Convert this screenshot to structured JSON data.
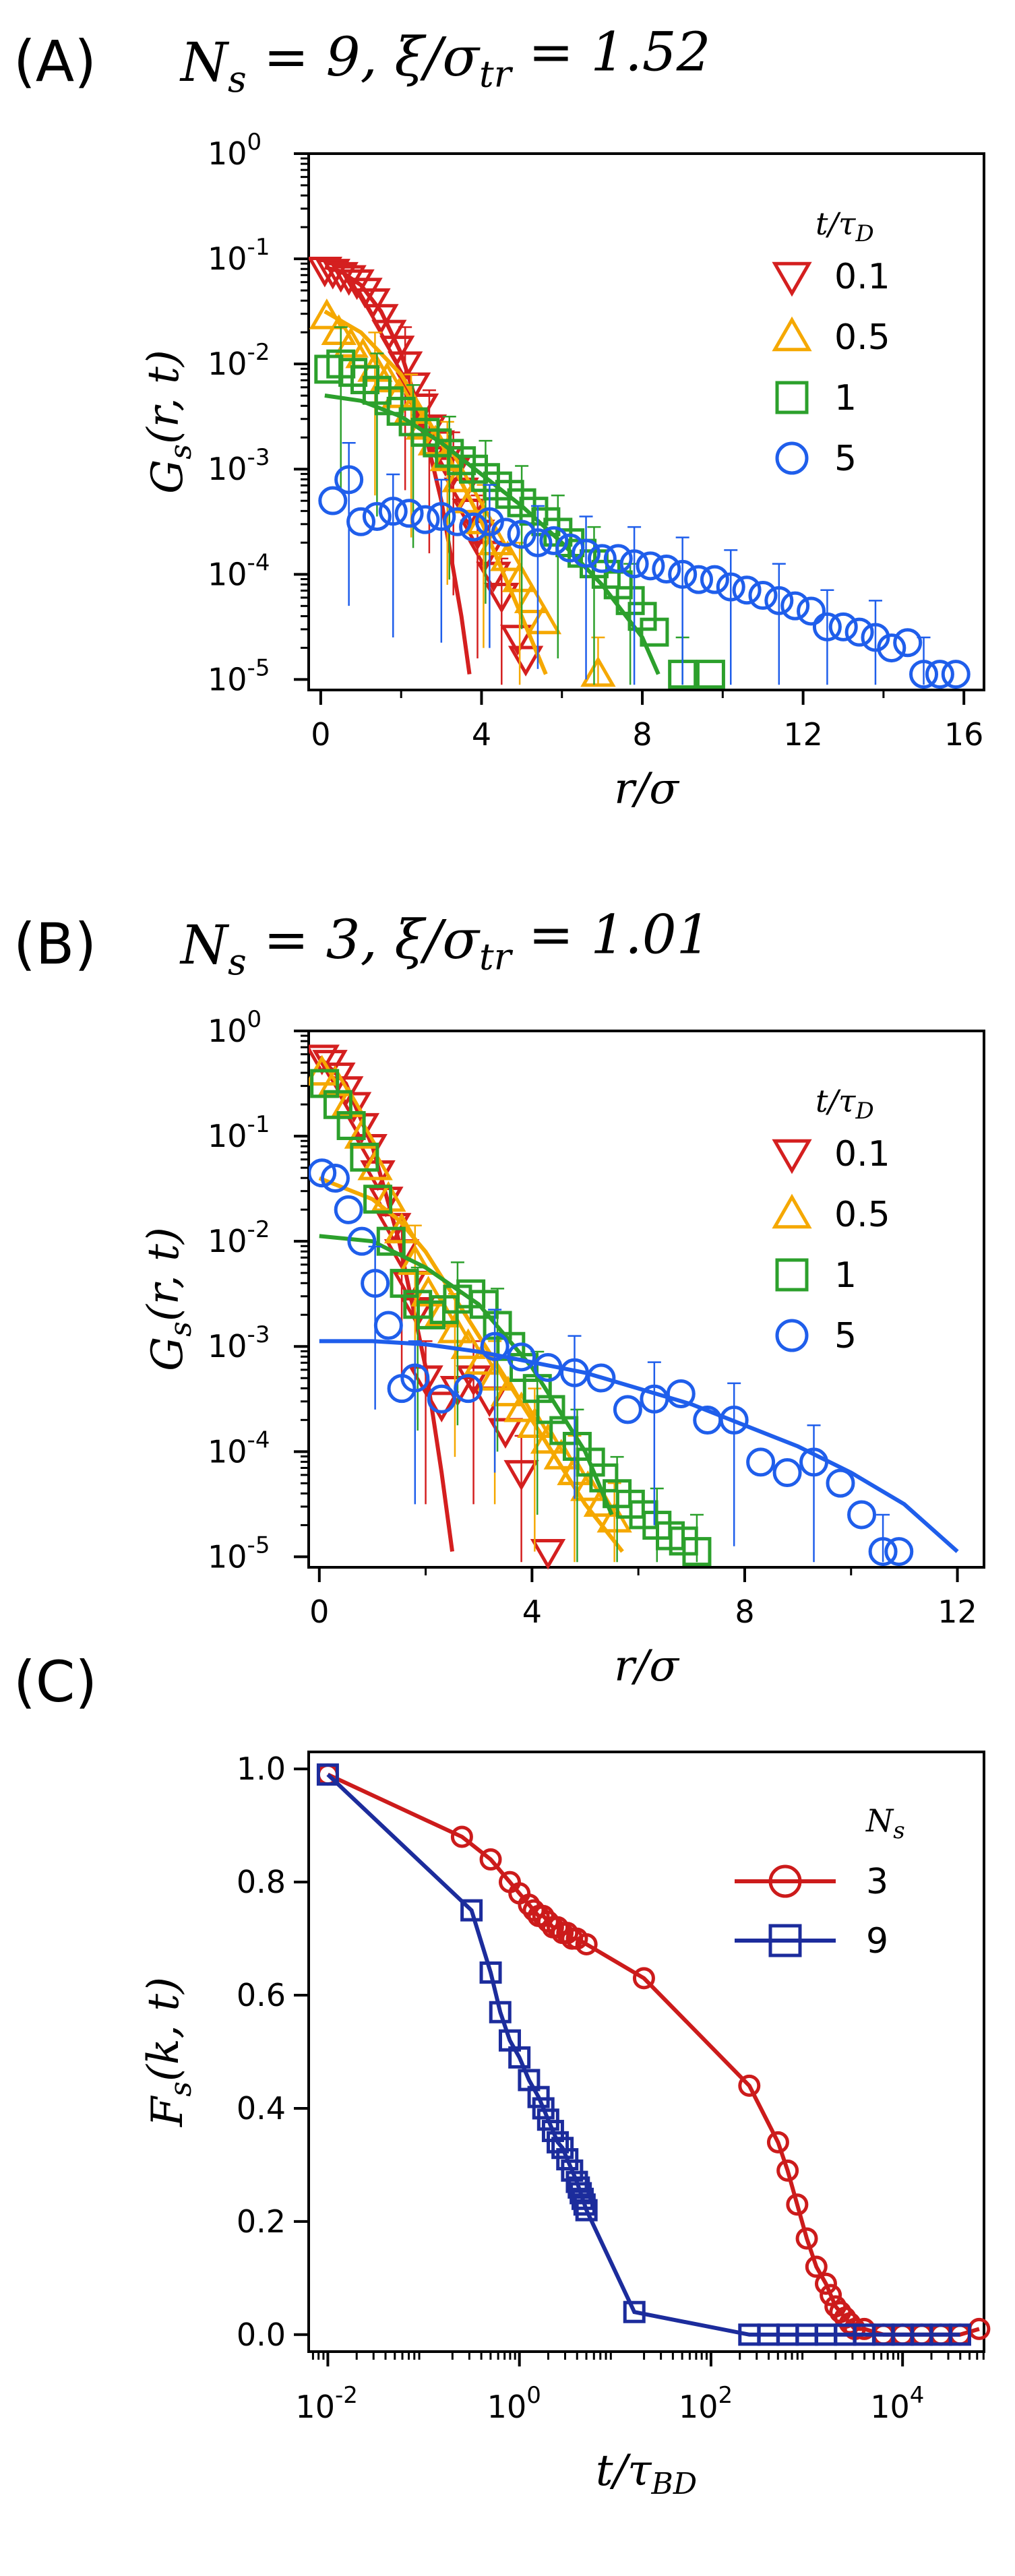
{
  "chart_data": [
    {
      "type": "scatter",
      "panel_label": "(A)",
      "title": "N_s = 9, ξ/σ_tr = 1.52",
      "title_parts": [
        "N",
        "s",
        " = 9, ξ/σ",
        "tr",
        " = 1.52"
      ],
      "xlabel": "r/σ",
      "ylabel": "G_s(r,t)",
      "ylabel_parts": [
        "G",
        "s",
        "(r, t)"
      ],
      "xlim": [
        -0.3,
        16.5
      ],
      "ylim": [
        -5.1,
        0
      ],
      "yscale": "log",
      "x_ticks": [
        0,
        4,
        8,
        12,
        16
      ],
      "y_tick_exponents": [
        0,
        -1,
        -2,
        -3,
        -4,
        -5
      ],
      "legend_title_parts": [
        "t/τ",
        "D"
      ],
      "legend_position": "top-right",
      "series": [
        {
          "name": "0.1",
          "color": "#d41f1f",
          "marker": "tri-down",
          "x": [
            0.1,
            0.3,
            0.5,
            0.7,
            0.9,
            1.1,
            1.3,
            1.5,
            1.7,
            1.9,
            2.1,
            2.3,
            2.5,
            2.7,
            2.9,
            3.1,
            3.3,
            3.5,
            3.7,
            3.9,
            4.1,
            4.3,
            4.5,
            4.9,
            5.1
          ],
          "log10y": [
            -1.1,
            -1.12,
            -1.15,
            -1.18,
            -1.22,
            -1.3,
            -1.4,
            -1.55,
            -1.7,
            -1.85,
            -2.0,
            -2.2,
            -2.4,
            -2.6,
            -2.75,
            -2.9,
            -3.0,
            -3.2,
            -3.4,
            -3.6,
            -3.8,
            -4.0,
            -4.2,
            -4.6,
            -4.8
          ],
          "fit_x": [
            0.1,
            0.5,
            1,
            1.5,
            2,
            2.5,
            3,
            3.5,
            3.7
          ],
          "fit_log10y": [
            -1.08,
            -1.12,
            -1.25,
            -1.5,
            -1.9,
            -2.5,
            -3.3,
            -4.4,
            -4.95
          ]
        },
        {
          "name": "0.5",
          "color": "#f5a800",
          "marker": "tri-up",
          "x": [
            0.15,
            0.45,
            0.75,
            1.05,
            1.35,
            1.65,
            1.95,
            2.25,
            2.55,
            2.85,
            3.15,
            3.45,
            3.75,
            4.05,
            4.35,
            4.65,
            4.95,
            5.25,
            5.55,
            6.9
          ],
          "log10y": [
            -1.55,
            -1.7,
            -1.82,
            -1.92,
            -2.05,
            -2.15,
            -2.3,
            -2.45,
            -2.6,
            -2.75,
            -2.9,
            -3.1,
            -3.3,
            -3.5,
            -3.7,
            -3.85,
            -4.05,
            -4.25,
            -4.45,
            -4.95
          ],
          "fit_x": [
            0.1,
            1,
            2,
            3,
            4,
            5,
            5.6
          ],
          "fit_log10y": [
            -1.5,
            -1.7,
            -2.1,
            -2.75,
            -3.5,
            -4.4,
            -4.95
          ]
        },
        {
          "name": "1",
          "color": "#2ca02c",
          "marker": "square",
          "x": [
            0.2,
            0.5,
            0.8,
            1.1,
            1.4,
            1.7,
            2.0,
            2.3,
            2.6,
            2.9,
            3.2,
            3.5,
            3.8,
            4.1,
            4.4,
            4.7,
            5.0,
            5.3,
            5.6,
            5.9,
            6.2,
            6.5,
            6.8,
            7.1,
            7.4,
            7.7,
            8.0,
            8.3,
            9.0,
            9.7
          ],
          "log10y": [
            -2.05,
            -2.0,
            -2.08,
            -2.15,
            -2.25,
            -2.35,
            -2.45,
            -2.55,
            -2.65,
            -2.75,
            -2.85,
            -2.92,
            -3.0,
            -3.08,
            -3.16,
            -3.24,
            -3.32,
            -3.4,
            -3.5,
            -3.6,
            -3.7,
            -3.8,
            -3.9,
            -4.0,
            -4.1,
            -4.25,
            -4.4,
            -4.55,
            -4.95,
            -4.95
          ],
          "fit_x": [
            0.1,
            1,
            2,
            3,
            4,
            5,
            6,
            7,
            8,
            8.4
          ],
          "fit_log10y": [
            -2.3,
            -2.35,
            -2.5,
            -2.75,
            -3.05,
            -3.35,
            -3.7,
            -4.1,
            -4.6,
            -4.95
          ]
        },
        {
          "name": "5",
          "color": "#1f5eeb",
          "marker": "circle",
          "x": [
            0.3,
            0.7,
            1.0,
            1.4,
            1.8,
            2.2,
            2.6,
            3.0,
            3.4,
            3.8,
            4.2,
            4.6,
            5.0,
            5.4,
            5.8,
            6.2,
            6.6,
            7.0,
            7.4,
            7.8,
            8.2,
            8.6,
            9.0,
            9.4,
            9.8,
            10.2,
            10.6,
            11.0,
            11.4,
            11.8,
            12.2,
            12.6,
            13.0,
            13.4,
            13.8,
            14.2,
            14.6,
            15.0,
            15.4,
            15.8
          ],
          "log10y": [
            -3.3,
            -3.1,
            -3.5,
            -3.45,
            -3.4,
            -3.42,
            -3.48,
            -3.45,
            -3.5,
            -3.55,
            -3.5,
            -3.6,
            -3.62,
            -3.7,
            -3.68,
            -3.75,
            -3.8,
            -3.85,
            -3.85,
            -3.9,
            -3.92,
            -3.95,
            -4.0,
            -4.05,
            -4.05,
            -4.12,
            -4.15,
            -4.2,
            -4.25,
            -4.3,
            -4.35,
            -4.5,
            -4.5,
            -4.55,
            -4.6,
            -4.7,
            -4.65,
            -4.95,
            -4.95,
            -4.95
          ],
          "fit_x": [],
          "fit_log10y": []
        }
      ]
    },
    {
      "type": "scatter",
      "panel_label": "(B)",
      "title": "N_s = 3, ξ/σ_tr = 1.01",
      "title_parts": [
        "N",
        "s",
        " = 3, ξ/σ",
        "tr",
        " = 1.01"
      ],
      "xlabel": "r/σ",
      "ylabel": "G_s(r,t)",
      "ylabel_parts": [
        "G",
        "s",
        "(r, t)"
      ],
      "xlim": [
        -0.2,
        12.5
      ],
      "ylim": [
        -5.1,
        0
      ],
      "yscale": "log",
      "x_ticks": [
        0,
        4,
        8,
        12
      ],
      "y_tick_exponents": [
        0,
        -1,
        -2,
        -3,
        -4,
        -5
      ],
      "legend_title_parts": [
        "t/τ",
        "D"
      ],
      "legend_position": "top-right",
      "series": [
        {
          "name": "0.1",
          "color": "#d41f1f",
          "marker": "tri-down",
          "x": [
            0.05,
            0.2,
            0.35,
            0.5,
            0.65,
            0.8,
            0.95,
            1.1,
            1.25,
            1.4,
            1.55,
            1.7,
            1.85,
            2.0,
            2.3,
            2.6,
            2.9,
            3.2,
            3.5,
            3.8,
            4.3
          ],
          "log10y": [
            -0.25,
            -0.3,
            -0.42,
            -0.55,
            -0.7,
            -0.9,
            -1.1,
            -1.35,
            -1.6,
            -1.85,
            -2.1,
            -2.4,
            -2.65,
            -3.3,
            -3.55,
            -3.4,
            -3.3,
            -3.5,
            -3.8,
            -4.2,
            -4.95
          ],
          "fit_x": [
            0,
            0.5,
            1,
            1.5,
            2,
            2.3,
            2.5
          ],
          "fit_log10y": [
            -0.25,
            -0.5,
            -1.1,
            -2.0,
            -3.2,
            -4.2,
            -4.95
          ]
        },
        {
          "name": "0.5",
          "color": "#f5a800",
          "marker": "tri-up",
          "x": [
            0.05,
            0.3,
            0.55,
            0.8,
            1.05,
            1.3,
            1.55,
            1.8,
            2.05,
            2.3,
            2.55,
            2.8,
            3.05,
            3.3,
            3.55,
            3.8,
            4.05,
            4.3,
            4.55,
            4.8,
            5.05,
            5.3,
            5.55
          ],
          "log10y": [
            -0.4,
            -0.5,
            -0.7,
            -1.0,
            -1.3,
            -1.6,
            -1.9,
            -2.2,
            -2.5,
            -2.7,
            -2.85,
            -3.0,
            -3.15,
            -3.3,
            -3.45,
            -3.6,
            -3.75,
            -3.9,
            -4.05,
            -4.2,
            -4.35,
            -4.5,
            -4.65
          ],
          "fit_x": [
            0,
            0.5,
            1,
            1.5,
            2,
            2.5,
            3,
            3.5,
            4,
            4.5,
            5,
            5.7
          ],
          "fit_log10y": [
            -1.4,
            -1.5,
            -1.6,
            -1.8,
            -2.1,
            -2.5,
            -2.9,
            -3.3,
            -3.7,
            -4.1,
            -4.5,
            -4.95
          ]
        },
        {
          "name": "1",
          "color": "#2ca02c",
          "marker": "square",
          "x": [
            0.1,
            0.35,
            0.6,
            0.85,
            1.1,
            1.35,
            1.6,
            1.85,
            2.1,
            2.35,
            2.6,
            2.85,
            3.1,
            3.35,
            3.6,
            3.85,
            4.1,
            4.35,
            4.6,
            4.85,
            5.1,
            5.35,
            5.6,
            5.85,
            6.1,
            6.35,
            6.6,
            6.85,
            7.1
          ],
          "log10y": [
            -0.5,
            -0.7,
            -0.9,
            -1.2,
            -1.6,
            -2.0,
            -2.4,
            -2.6,
            -2.7,
            -2.65,
            -2.55,
            -2.5,
            -2.6,
            -2.8,
            -3.0,
            -3.2,
            -3.4,
            -3.6,
            -3.8,
            -3.95,
            -4.1,
            -4.25,
            -4.4,
            -4.5,
            -4.6,
            -4.7,
            -4.8,
            -4.85,
            -4.95
          ],
          "fit_x": [
            0,
            1,
            2,
            3,
            4,
            5,
            5.5
          ],
          "fit_log10y": [
            -1.95,
            -2.0,
            -2.25,
            -2.6,
            -3.2,
            -4.0,
            -4.6
          ]
        },
        {
          "name": "5",
          "color": "#1f5eeb",
          "marker": "circle",
          "x": [
            0.05,
            0.3,
            0.55,
            0.8,
            1.05,
            1.3,
            1.55,
            1.8,
            2.3,
            2.8,
            3.3,
            3.8,
            4.3,
            4.8,
            5.3,
            5.8,
            6.3,
            6.8,
            7.3,
            7.8,
            8.3,
            8.8,
            9.3,
            9.8,
            10.2,
            10.6,
            10.9
          ],
          "log10y": [
            -1.35,
            -1.4,
            -1.7,
            -2.0,
            -2.4,
            -2.8,
            -3.4,
            -3.3,
            -3.5,
            -3.4,
            -3.0,
            -3.1,
            -3.2,
            -3.25,
            -3.3,
            -3.6,
            -3.5,
            -3.45,
            -3.7,
            -3.7,
            -4.1,
            -4.2,
            -4.1,
            -4.3,
            -4.6,
            -4.95,
            -4.95
          ],
          "fit_x": [
            0,
            1,
            2,
            3,
            4,
            5,
            6,
            7,
            8,
            9,
            10,
            11,
            12
          ],
          "fit_log10y": [
            -2.95,
            -2.95,
            -2.98,
            -3.05,
            -3.15,
            -3.25,
            -3.4,
            -3.55,
            -3.75,
            -3.95,
            -4.2,
            -4.5,
            -4.95
          ]
        }
      ]
    },
    {
      "type": "line",
      "panel_label": "(C)",
      "xlabel": "t/τ_BD",
      "xlabel_parts": [
        "t/τ",
        "BD"
      ],
      "ylabel": "F_s(k,t)",
      "ylabel_parts": [
        "F",
        "s",
        "(k, t)"
      ],
      "xscale": "log",
      "xlim_log10": [
        -2.2,
        4.85
      ],
      "ylim": [
        -0.03,
        1.03
      ],
      "x_tick_exponents": [
        -2,
        0,
        2,
        4
      ],
      "y_ticks": [
        "0.0",
        "0.2",
        "0.4",
        "0.6",
        "0.8",
        "1.0"
      ],
      "legend_title_parts": [
        "N",
        "s"
      ],
      "legend_position": "top-right",
      "series": [
        {
          "name": "3",
          "color": "#cc1b1b",
          "marker": "circle",
          "log10x": [
            -2.0,
            -0.6,
            -0.3,
            -0.1,
            0.0,
            0.1,
            0.15,
            0.2,
            0.25,
            0.3,
            0.35,
            0.4,
            0.45,
            0.5,
            0.55,
            0.6,
            0.7,
            1.3,
            2.4,
            2.7,
            2.8,
            2.9,
            3.0,
            3.1,
            3.2,
            3.25,
            3.3,
            3.35,
            3.4,
            3.45,
            3.5,
            3.6,
            3.8,
            4.0,
            4.2,
            4.4,
            4.6,
            4.8
          ],
          "y": [
            0.99,
            0.88,
            0.84,
            0.8,
            0.78,
            0.76,
            0.75,
            0.74,
            0.74,
            0.73,
            0.72,
            0.72,
            0.71,
            0.71,
            0.7,
            0.7,
            0.69,
            0.63,
            0.44,
            0.34,
            0.29,
            0.23,
            0.17,
            0.12,
            0.09,
            0.07,
            0.05,
            0.04,
            0.03,
            0.02,
            0.01,
            0.01,
            0.0,
            0.0,
            0.0,
            0.0,
            0.0,
            0.01
          ]
        },
        {
          "name": "9",
          "color": "#1c2c9c",
          "marker": "square",
          "log10x": [
            -2.0,
            -0.5,
            -0.3,
            -0.2,
            -0.1,
            0.0,
            0.1,
            0.2,
            0.25,
            0.3,
            0.35,
            0.4,
            0.45,
            0.5,
            0.55,
            0.6,
            0.62,
            0.64,
            0.66,
            0.68,
            0.7,
            1.2,
            2.4,
            2.6,
            2.8,
            3.0,
            3.2,
            3.4,
            3.6,
            3.8,
            4.0,
            4.2,
            4.4,
            4.6
          ],
          "y": [
            0.99,
            0.75,
            0.64,
            0.57,
            0.52,
            0.49,
            0.45,
            0.42,
            0.4,
            0.38,
            0.36,
            0.34,
            0.33,
            0.31,
            0.29,
            0.27,
            0.26,
            0.25,
            0.24,
            0.23,
            0.22,
            0.04,
            0.0,
            0.0,
            0.0,
            0.0,
            0.0,
            0.0,
            0.0,
            0.0,
            0.0,
            0.0,
            0.0,
            0.0
          ]
        }
      ]
    }
  ]
}
